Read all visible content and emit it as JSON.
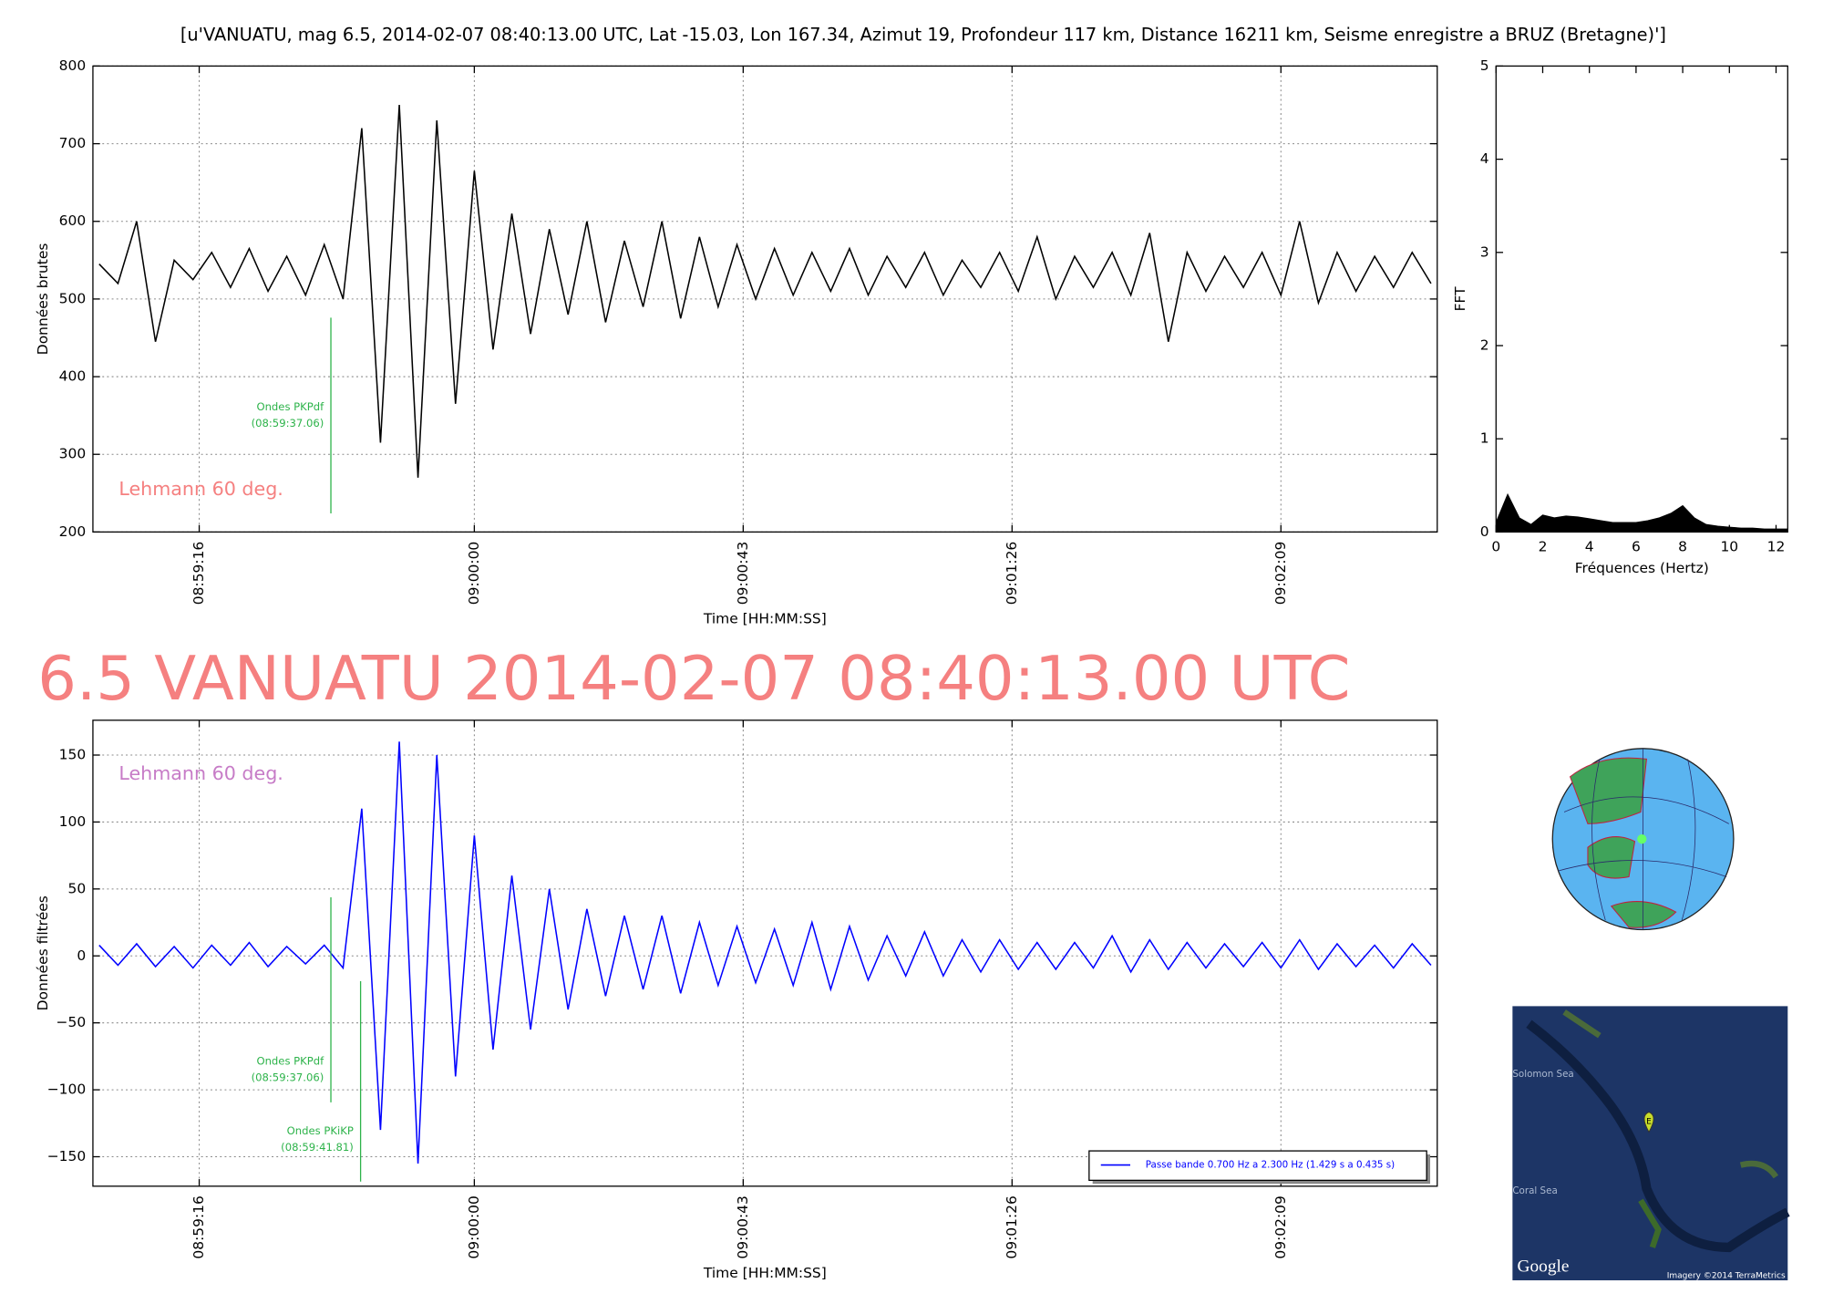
{
  "heading": "6.5 VANUATU 2014-02-07 08:40:13.00 UTC",
  "chart_data": [
    {
      "type": "line",
      "title": "[u'VANUATU, mag 6.5, 2014-02-07 08:40:13.00 UTC, Lat -15.03, Lon 167.34, Azimut  19, Profondeur 117 km, Distance 16211 km, Seisme enregistre a BRUZ (Bretagne)']",
      "xlabel": "Time [HH:MM:SS]",
      "ylabel": "Données brutes",
      "note": "Lehmann 60 deg.",
      "note_color": "#f58080",
      "x": [
        "08:59:00",
        "08:59:03",
        "08:59:06",
        "08:59:09",
        "08:59:12",
        "08:59:15",
        "08:59:18",
        "08:59:21",
        "08:59:24",
        "08:59:27",
        "08:59:30",
        "08:59:33",
        "08:59:36",
        "08:59:39",
        "08:59:42",
        "08:59:45",
        "08:59:48",
        "08:59:51",
        "08:59:54",
        "08:59:57",
        "09:00:00",
        "09:00:03",
        "09:00:06",
        "09:00:09",
        "09:00:12",
        "09:00:15",
        "09:00:18",
        "09:00:21",
        "09:00:24",
        "09:00:27",
        "09:00:30",
        "09:00:33",
        "09:00:36",
        "09:00:39",
        "09:00:42",
        "09:00:45",
        "09:00:48",
        "09:00:51",
        "09:00:54",
        "09:00:57",
        "09:01:00",
        "09:01:03",
        "09:01:06",
        "09:01:09",
        "09:01:12",
        "09:01:15",
        "09:01:18",
        "09:01:21",
        "09:01:24",
        "09:01:27",
        "09:01:30",
        "09:01:33",
        "09:01:36",
        "09:01:39",
        "09:01:42",
        "09:01:45",
        "09:01:48",
        "09:01:51",
        "09:01:54",
        "09:01:57",
        "09:02:00",
        "09:02:03",
        "09:02:06",
        "09:02:09",
        "09:02:12",
        "09:02:15",
        "09:02:18",
        "09:02:21",
        "09:02:24",
        "09:02:27",
        "09:02:30",
        "09:02:33"
      ],
      "values": [
        545,
        520,
        600,
        445,
        550,
        525,
        560,
        515,
        565,
        510,
        555,
        505,
        570,
        500,
        720,
        315,
        750,
        270,
        730,
        365,
        665,
        435,
        610,
        455,
        590,
        480,
        600,
        470,
        575,
        490,
        600,
        475,
        580,
        490,
        570,
        500,
        565,
        505,
        560,
        510,
        565,
        505,
        555,
        515,
        560,
        505,
        550,
        515,
        560,
        510,
        580,
        500,
        555,
        515,
        560,
        505,
        585,
        445,
        560,
        510,
        555,
        515,
        560,
        505,
        600,
        495,
        560,
        510,
        555,
        515,
        560,
        520
      ],
      "color": "#000000",
      "grid": true,
      "xlim": [
        "08:58:59",
        "09:02:34"
      ],
      "xticks": [
        "08:59:16",
        "09:00:00",
        "09:00:43",
        "09:01:26",
        "09:02:09"
      ],
      "ylim": [
        200,
        800
      ],
      "yticks": [
        200,
        300,
        400,
        500,
        600,
        700,
        800
      ],
      "annotations": [
        {
          "text": "Ondes PKPdf",
          "time": "(08:59:37.06)"
        }
      ],
      "annotation_color": "#2db34a"
    },
    {
      "type": "area",
      "xlabel": "Fréquences (Hertz)",
      "ylabel": "FFT",
      "x": [
        0,
        0.5,
        1,
        1.5,
        2,
        2.5,
        3,
        3.5,
        4,
        4.5,
        5,
        5.5,
        6,
        6.5,
        7,
        7.5,
        8,
        8.5,
        9,
        9.5,
        10,
        10.5,
        11,
        11.5,
        12,
        12.5
      ],
      "values": [
        0.1,
        0.4,
        0.15,
        0.08,
        0.18,
        0.15,
        0.17,
        0.16,
        0.14,
        0.12,
        0.1,
        0.1,
        0.1,
        0.12,
        0.15,
        0.2,
        0.28,
        0.15,
        0.08,
        0.06,
        0.05,
        0.04,
        0.04,
        0.03,
        0.03,
        0.03
      ],
      "color": "#000000",
      "grid": false,
      "xlim": [
        0,
        12.5
      ],
      "xticks": [
        0,
        2,
        4,
        6,
        8,
        10,
        12
      ],
      "ylim": [
        0,
        5
      ],
      "yticks": [
        0,
        1,
        2,
        3,
        4,
        5
      ]
    },
    {
      "type": "line",
      "xlabel": "Time [HH:MM:SS]",
      "ylabel": "Données filtrées",
      "note": "Lehmann 60 deg.",
      "note_color": "#c77cc7",
      "x": [
        "08:59:00",
        "08:59:03",
        "08:59:06",
        "08:59:09",
        "08:59:12",
        "08:59:15",
        "08:59:18",
        "08:59:21",
        "08:59:24",
        "08:59:27",
        "08:59:30",
        "08:59:33",
        "08:59:36",
        "08:59:39",
        "08:59:42",
        "08:59:45",
        "08:59:48",
        "08:59:51",
        "08:59:54",
        "08:59:57",
        "09:00:00",
        "09:00:03",
        "09:00:06",
        "09:00:09",
        "09:00:12",
        "09:00:15",
        "09:00:18",
        "09:00:21",
        "09:00:24",
        "09:00:27",
        "09:00:30",
        "09:00:33",
        "09:00:36",
        "09:00:39",
        "09:00:42",
        "09:00:45",
        "09:00:48",
        "09:00:51",
        "09:00:54",
        "09:00:57",
        "09:01:00",
        "09:01:03",
        "09:01:06",
        "09:01:09",
        "09:01:12",
        "09:01:15",
        "09:01:18",
        "09:01:21",
        "09:01:24",
        "09:01:27",
        "09:01:30",
        "09:01:33",
        "09:01:36",
        "09:01:39",
        "09:01:42",
        "09:01:45",
        "09:01:48",
        "09:01:51",
        "09:01:54",
        "09:01:57",
        "09:02:00",
        "09:02:03",
        "09:02:06",
        "09:02:09",
        "09:02:12",
        "09:02:15",
        "09:02:18",
        "09:02:21",
        "09:02:24",
        "09:02:27",
        "09:02:30",
        "09:02:33"
      ],
      "series": [
        {
          "name": "Passe bande 0.700 Hz a 2.300 Hz (1.429 s a 0.435 s)",
          "color": "#0000ff",
          "values": [
            8,
            -7,
            9,
            -8,
            7,
            -9,
            8,
            -7,
            10,
            -8,
            7,
            -6,
            8,
            -9,
            110,
            -130,
            160,
            -155,
            150,
            -90,
            90,
            -70,
            60,
            -55,
            50,
            -40,
            35,
            -30,
            30,
            -25,
            30,
            -28,
            25,
            -22,
            22,
            -20,
            20,
            -22,
            25,
            -25,
            22,
            -18,
            15,
            -15,
            18,
            -15,
            12,
            -12,
            12,
            -10,
            10,
            -10,
            10,
            -9,
            15,
            -12,
            12,
            -10,
            10,
            -9,
            9,
            -8,
            10,
            -9,
            12,
            -10,
            9,
            -8,
            8,
            -9,
            9,
            -7
          ]
        }
      ],
      "grid": true,
      "legend": "lower right",
      "xlim": [
        "08:58:59",
        "09:02:34"
      ],
      "xticks": [
        "08:59:16",
        "09:00:00",
        "09:00:43",
        "09:01:26",
        "09:02:09"
      ],
      "ylim": [
        -172,
        176
      ],
      "yticks": [
        {
          "value": -150,
          "label": "−150"
        },
        {
          "value": -100,
          "label": "−100"
        },
        {
          "value": -50,
          "label": "−50"
        },
        0,
        50,
        100,
        150
      ],
      "annotations": [
        {
          "text": "Ondes PKPdf",
          "time": "(08:59:37.06)"
        },
        {
          "text": "Ondes PKiKP",
          "time": "(08:59:41.81)"
        }
      ],
      "annotation_color": "#2db34a"
    }
  ],
  "map": {
    "labels": [
      "Solomon Sea",
      "Coral Sea"
    ],
    "marker": "E",
    "logo": "Google",
    "credit": "Imagery ©2014 TerraMetrics"
  }
}
